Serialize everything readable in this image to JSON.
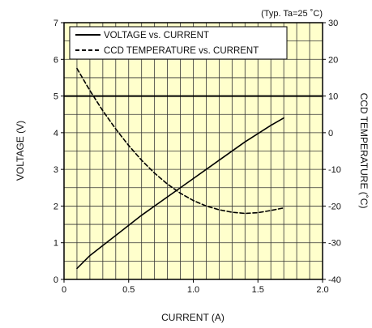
{
  "chart_data": {
    "type": "line",
    "note": "(Typ. Ta=25 ˚C)",
    "xlabel": "CURRENT (A)",
    "ylabel_left": "VOLTAGE (V)",
    "ylabel_right": "CCD TEMPERATURE (˚C)",
    "xlim": [
      0,
      2.0
    ],
    "ylim_left": [
      0,
      7
    ],
    "ylim_right": [
      -40,
      30
    ],
    "x_ticks": [
      {
        "value": 0,
        "label": "0"
      },
      {
        "value": 0.5,
        "label": "0.5"
      },
      {
        "value": 1.0,
        "label": "1.0"
      },
      {
        "value": 1.5,
        "label": "1.5"
      },
      {
        "value": 2.0,
        "label": "2.0"
      }
    ],
    "y_left_ticks": [
      {
        "value": 0,
        "label": "0"
      },
      {
        "value": 1,
        "label": "1"
      },
      {
        "value": 2,
        "label": "2"
      },
      {
        "value": 3,
        "label": "3"
      },
      {
        "value": 4,
        "label": "4"
      },
      {
        "value": 5,
        "label": "5"
      },
      {
        "value": 6,
        "label": "6"
      },
      {
        "value": 7,
        "label": "7"
      }
    ],
    "y_right_ticks": [
      {
        "value": -40,
        "label": "-40"
      },
      {
        "value": -30,
        "label": "-30"
      },
      {
        "value": -20,
        "label": "-20"
      },
      {
        "value": -10,
        "label": "-10"
      },
      {
        "value": 0,
        "label": "0"
      },
      {
        "value": 10,
        "label": "10"
      },
      {
        "value": 20,
        "label": "20"
      },
      {
        "value": 30,
        "label": "30"
      }
    ],
    "grid": true,
    "colors": {
      "plot_background": "#ffffcc",
      "grid": "#333333",
      "line": "#000000"
    },
    "reference_line": {
      "axis": "left",
      "value": 5
    },
    "legend": {
      "placement": "top"
    },
    "series": [
      {
        "name": "VOLTAGE vs. CURRENT",
        "axis": "left",
        "style": "solid",
        "x": [
          0.1,
          0.2,
          0.4,
          0.6,
          0.8,
          1.0,
          1.2,
          1.4,
          1.6,
          1.7
        ],
        "y": [
          0.3,
          0.65,
          1.2,
          1.75,
          2.25,
          2.75,
          3.25,
          3.75,
          4.2,
          4.4
        ]
      },
      {
        "name": "CCD TEMPERATURE vs. CURRENT",
        "axis": "right",
        "style": "dashed",
        "x": [
          0.1,
          0.2,
          0.3,
          0.4,
          0.5,
          0.6,
          0.7,
          0.8,
          0.9,
          1.0,
          1.1,
          1.2,
          1.3,
          1.4,
          1.5,
          1.6,
          1.7
        ],
        "y": [
          17.5,
          11.5,
          6.0,
          1.0,
          -3.5,
          -7.5,
          -11.0,
          -14.0,
          -16.5,
          -18.5,
          -20.0,
          -21.0,
          -21.7,
          -22.0,
          -21.8,
          -21.2,
          -20.5
        ]
      }
    ]
  }
}
